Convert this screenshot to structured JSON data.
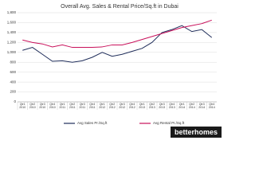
{
  "chart_data": {
    "type": "line",
    "title": "Overall Avg. Sales & Rental Price/Sq.ft in Dubai",
    "categories": [
      "Qtr1 2010",
      "Qtr2 2010",
      "Qtr3 2010",
      "Qtr4 2010",
      "Qtr1 2011",
      "Qtr2 2011",
      "Qtr3 2011",
      "Qtr4 2011",
      "Qtr1 2012",
      "Qtr2 2012",
      "Qtr3 2012",
      "Qtr4 2012",
      "Qtr1 2013",
      "Qtr2 2013",
      "Qtr3 2013",
      "Qtr4 2013",
      "Qtr1 2014",
      "Qtr2 2014",
      "Qtr3 2014",
      "Qtr4 2014"
    ],
    "series": [
      {
        "name": "Avg Sales Pr./Sq.ft",
        "color": "#1f2d5a",
        "values": [
          1040,
          1100,
          960,
          820,
          830,
          800,
          830,
          900,
          1000,
          920,
          960,
          1020,
          1080,
          1200,
          1400,
          1460,
          1540,
          1420,
          1460,
          1300
        ]
      },
      {
        "name": "Avg Rental Pr./Sq.ft",
        "color": "#c8105a",
        "values": [
          1250,
          1200,
          1170,
          1110,
          1150,
          1100,
          1100,
          1100,
          1110,
          1150,
          1150,
          1200,
          1260,
          1320,
          1380,
          1440,
          1500,
          1540,
          1580,
          1650
        ]
      }
    ],
    "ylim": [
      0,
      1800
    ],
    "yticks": [
      0,
      200,
      400,
      600,
      800,
      {
        "value": 1000,
        "label": "1,000"
      },
      {
        "value": 1200,
        "label": "1,200"
      },
      {
        "value": 1400,
        "label": "1,400"
      },
      {
        "value": 1600,
        "label": "1,600"
      },
      {
        "value": 1800,
        "label": "1,800"
      }
    ],
    "grid": true
  },
  "branding": "betterhomes"
}
